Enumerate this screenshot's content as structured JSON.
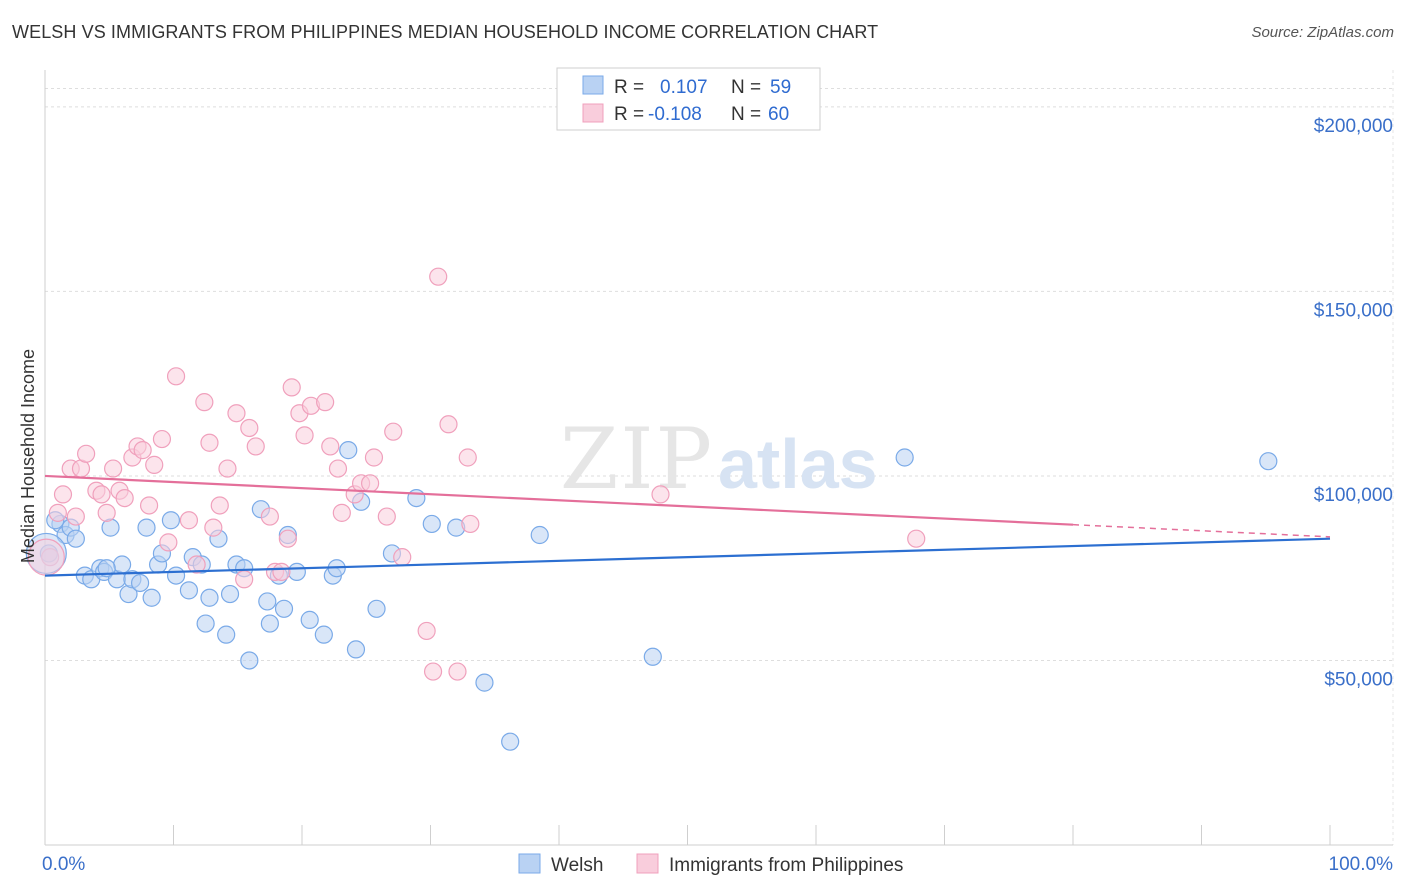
{
  "title": "WELSH VS IMMIGRANTS FROM PHILIPPINES MEDIAN HOUSEHOLD INCOME CORRELATION CHART",
  "source": "Source: ZipAtlas.com",
  "watermark": {
    "zip": "ZIP",
    "atlas": "atlas"
  },
  "chart_data": {
    "type": "scatter",
    "ylabel": "Median Household Income",
    "xlabel": "",
    "xlim": [
      0,
      100
    ],
    "ylim": [
      0,
      210000
    ],
    "x_tick_labels": [
      "0.0%",
      "100.0%"
    ],
    "y_ticks": [
      {
        "value": 50000,
        "label": "$50,000"
      },
      {
        "value": 100000,
        "label": "$100,000"
      },
      {
        "value": 150000,
        "label": "$150,000"
      },
      {
        "value": 200000,
        "label": "$200,000"
      }
    ],
    "grid": true,
    "legend_position": "top-center",
    "stats": [
      {
        "r_label": "R =",
        "r_value": "0.107",
        "n_label": "N =",
        "n_value": "59"
      },
      {
        "r_label": "R =",
        "r_value": "-0.108",
        "n_label": "N =",
        "n_value": "60"
      }
    ],
    "series": [
      {
        "name": "Welsh",
        "color": "#7aaae8",
        "fill": "#b9d2f3",
        "line_color": "#2c6fd1",
        "trend": {
          "x0": 0,
          "y0": 73000,
          "x1": 100,
          "y1": 83000,
          "solid_until": 100
        },
        "points": [
          [
            0.3,
            79000
          ],
          [
            1.2,
            87000
          ],
          [
            1.6,
            84000
          ],
          [
            2.0,
            86000
          ],
          [
            2.4,
            83000
          ],
          [
            3.1,
            73000
          ],
          [
            3.6,
            72000
          ],
          [
            4.3,
            75000
          ],
          [
            4.6,
            74000
          ],
          [
            5.1,
            86000
          ],
          [
            5.6,
            72000
          ],
          [
            6.0,
            76000
          ],
          [
            6.5,
            68000
          ],
          [
            6.8,
            72000
          ],
          [
            7.4,
            71000
          ],
          [
            7.9,
            86000
          ],
          [
            8.3,
            67000
          ],
          [
            8.8,
            76000
          ],
          [
            9.1,
            79000
          ],
          [
            9.8,
            88000
          ],
          [
            10.2,
            73000
          ],
          [
            11.2,
            69000
          ],
          [
            11.5,
            78000
          ],
          [
            12.2,
            76000
          ],
          [
            12.5,
            60000
          ],
          [
            12.8,
            67000
          ],
          [
            13.5,
            83000
          ],
          [
            14.1,
            57000
          ],
          [
            14.4,
            68000
          ],
          [
            14.9,
            76000
          ],
          [
            15.5,
            75000
          ],
          [
            15.9,
            50000
          ],
          [
            16.8,
            91000
          ],
          [
            17.3,
            66000
          ],
          [
            17.5,
            60000
          ],
          [
            18.2,
            73000
          ],
          [
            18.6,
            64000
          ],
          [
            18.9,
            84000
          ],
          [
            19.6,
            74000
          ],
          [
            20.6,
            61000
          ],
          [
            21.7,
            57000
          ],
          [
            22.4,
            73000
          ],
          [
            22.7,
            75000
          ],
          [
            23.6,
            107000
          ],
          [
            24.2,
            53000
          ],
          [
            24.6,
            93000
          ],
          [
            25.8,
            64000
          ],
          [
            27.0,
            79000
          ],
          [
            28.9,
            94000
          ],
          [
            30.1,
            87000
          ],
          [
            32.0,
            86000
          ],
          [
            34.2,
            44000
          ],
          [
            36.2,
            28000
          ],
          [
            38.5,
            84000
          ],
          [
            47.3,
            51000
          ],
          [
            66.9,
            105000
          ],
          [
            95.2,
            104000
          ],
          [
            0.8,
            88000
          ],
          [
            4.8,
            75000
          ]
        ]
      },
      {
        "name": "Immigrants from Philippines",
        "color": "#f0a0bc",
        "fill": "#f9cddc",
        "line_color": "#e46f9a",
        "trend": {
          "x0": 0,
          "y0": 100000,
          "x1": 100,
          "y1": 83500,
          "solid_until": 80
        },
        "points": [
          [
            0.4,
            78000
          ],
          [
            1.0,
            90000
          ],
          [
            1.4,
            95000
          ],
          [
            2.0,
            102000
          ],
          [
            2.4,
            89000
          ],
          [
            2.8,
            102000
          ],
          [
            3.2,
            106000
          ],
          [
            4.0,
            96000
          ],
          [
            4.4,
            95000
          ],
          [
            4.8,
            90000
          ],
          [
            5.3,
            102000
          ],
          [
            5.8,
            96000
          ],
          [
            6.2,
            94000
          ],
          [
            6.8,
            105000
          ],
          [
            7.2,
            108000
          ],
          [
            7.6,
            107000
          ],
          [
            8.1,
            92000
          ],
          [
            8.5,
            103000
          ],
          [
            9.1,
            110000
          ],
          [
            9.6,
            82000
          ],
          [
            10.2,
            127000
          ],
          [
            11.2,
            88000
          ],
          [
            11.8,
            76000
          ],
          [
            12.4,
            120000
          ],
          [
            12.8,
            109000
          ],
          [
            13.1,
            86000
          ],
          [
            13.6,
            92000
          ],
          [
            14.2,
            102000
          ],
          [
            14.9,
            117000
          ],
          [
            15.5,
            72000
          ],
          [
            15.9,
            113000
          ],
          [
            16.4,
            108000
          ],
          [
            17.5,
            89000
          ],
          [
            17.9,
            74000
          ],
          [
            18.4,
            74000
          ],
          [
            18.9,
            83000
          ],
          [
            19.2,
            124000
          ],
          [
            19.8,
            117000
          ],
          [
            20.2,
            111000
          ],
          [
            20.7,
            119000
          ],
          [
            21.8,
            120000
          ],
          [
            22.2,
            108000
          ],
          [
            22.8,
            102000
          ],
          [
            23.1,
            90000
          ],
          [
            24.1,
            95000
          ],
          [
            24.6,
            98000
          ],
          [
            25.3,
            98000
          ],
          [
            25.6,
            105000
          ],
          [
            26.6,
            89000
          ],
          [
            27.1,
            112000
          ],
          [
            27.8,
            78000
          ],
          [
            29.7,
            58000
          ],
          [
            30.2,
            47000
          ],
          [
            30.6,
            154000
          ],
          [
            31.4,
            114000
          ],
          [
            32.1,
            47000
          ],
          [
            32.9,
            105000
          ],
          [
            33.1,
            87000
          ],
          [
            47.9,
            95000
          ],
          [
            67.8,
            83000
          ]
        ]
      }
    ]
  }
}
